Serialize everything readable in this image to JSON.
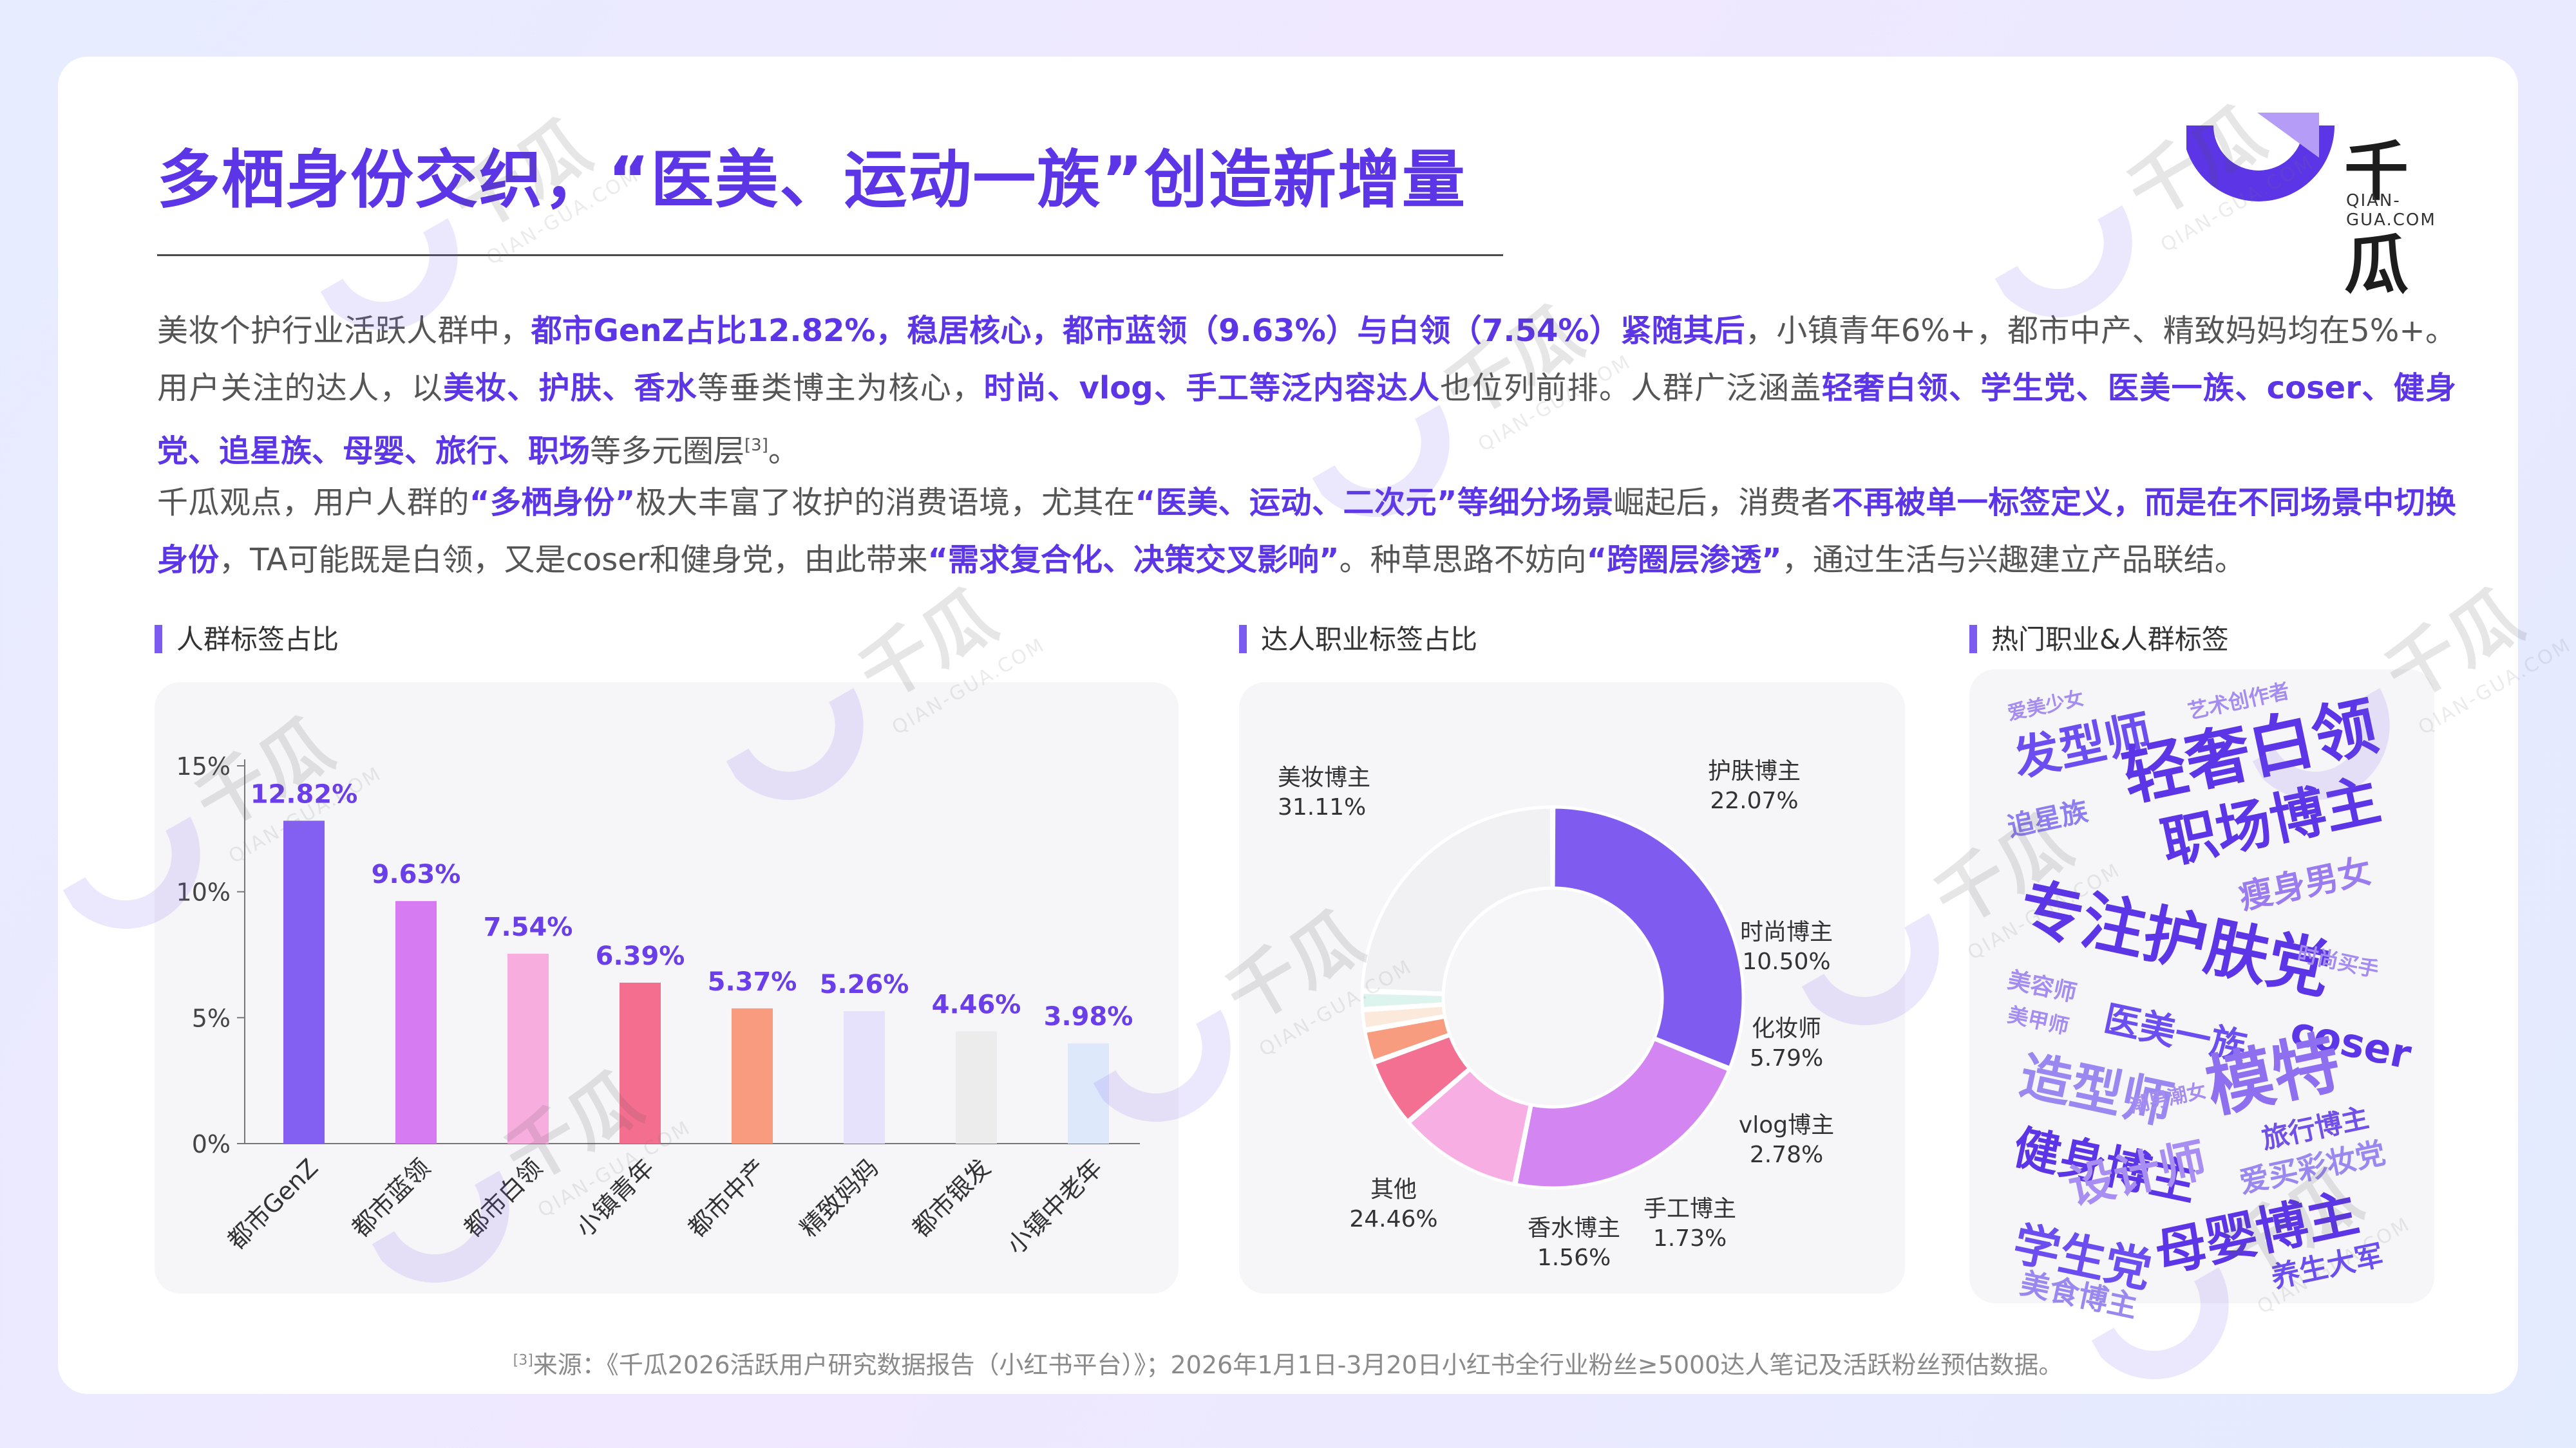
{
  "title": "多栖身份交织，“医美、运动一族”创造新增量",
  "logo": {
    "name": "千瓜",
    "sub": "QIAN-GUA.COM"
  },
  "paragraph1": [
    {
      "t": "美妆个护行业活跃人群中，",
      "h": false
    },
    {
      "t": "都市GenZ占比12.82%，稳居核心，都市蓝领（9.63%）与白领（7.54%）紧随其后",
      "h": true
    },
    {
      "t": "，小镇青年6%+，都市中产、精致妈妈均在5%+。用户关注的达人，以",
      "h": false
    },
    {
      "t": "美妆、护肤、香水",
      "h": true
    },
    {
      "t": "等垂类博主为核心，",
      "h": false
    },
    {
      "t": "时尚、vlog、手工等泛内容达人",
      "h": true
    },
    {
      "t": "也位列前排。人群广泛涵盖",
      "h": false
    },
    {
      "t": "轻奢白领、学生党、医美一族、coser、健身党、追星族、母婴、旅行、职场",
      "h": true
    },
    {
      "t": "等多元圈层",
      "h": false
    },
    {
      "t": "[3]",
      "h": false,
      "sup": true
    },
    {
      "t": "。",
      "h": false
    }
  ],
  "paragraph2": [
    {
      "t": "千瓜观点，用户人群的",
      "h": false
    },
    {
      "t": "“多栖身份”",
      "h": true
    },
    {
      "t": "极大丰富了妆护的消费语境，尤其在",
      "h": false
    },
    {
      "t": "“医美、运动、二次元”等细分场景",
      "h": true
    },
    {
      "t": "崛起后，消费者",
      "h": false
    },
    {
      "t": "不再被单一标签定义，而是在不同场景中切换身份",
      "h": true
    },
    {
      "t": "，TA可能既是白领，又是coser和健身党，由此带来",
      "h": false
    },
    {
      "t": "“需求复合化、决策交叉影响”",
      "h": true
    },
    {
      "t": "。种草思路不妨向",
      "h": false
    },
    {
      "t": "“跨圈层渗透”",
      "h": true
    },
    {
      "t": "，通过生活与兴趣建立产品联结。",
      "h": false
    }
  ],
  "section_titles": {
    "bar": "人群标签占比",
    "donut": "达人职业标签占比",
    "cloud": "热门职业&人群标签"
  },
  "chart_data": [
    {
      "type": "bar",
      "title": "人群标签占比",
      "categories": [
        "都市GenZ",
        "都市蓝领",
        "都市白领",
        "小镇青年",
        "都市中产",
        "精致妈妈",
        "都市银发",
        "小镇中老年"
      ],
      "values": [
        12.82,
        9.63,
        7.54,
        6.39,
        5.37,
        5.26,
        4.46,
        3.98
      ],
      "value_labels": [
        "12.82%",
        "9.63%",
        "7.54%",
        "6.39%",
        "5.37%",
        "5.26%",
        "4.46%",
        "3.98%"
      ],
      "colors": [
        "#8460f2",
        "#d67bf2",
        "#f8addf",
        "#f46e90",
        "#f89b7e",
        "#e7e2fb",
        "#ececec",
        "#dde8fb"
      ],
      "yticks": [
        "0%",
        "5%",
        "10%",
        "15%"
      ],
      "ylim": [
        0,
        15
      ],
      "grid": false
    },
    {
      "type": "pie",
      "title": "达人职业标签占比",
      "labels": [
        "美妆博主",
        "护肤博主",
        "时尚博主",
        "化妆师",
        "vlog博主",
        "手工博主",
        "香水博主",
        "其他"
      ],
      "values": [
        31.11,
        22.07,
        10.5,
        5.79,
        2.78,
        1.73,
        1.56,
        24.46
      ],
      "value_labels": [
        "31.11%",
        "22.07%",
        "10.50%",
        "5.79%",
        "2.78%",
        "1.73%",
        "1.56%",
        "24.46%"
      ],
      "colors": [
        "#7f5bf0",
        "#d385f2",
        "#f7aee2",
        "#f47092",
        "#f89c7f",
        "#fbe9dc",
        "#dcf3ee",
        "#f1f1f3"
      ],
      "donut": true
    }
  ],
  "wordcloud": [
    {
      "text": "爱美少女",
      "color": "#a48cf0",
      "size": 30,
      "rot": -12
    },
    {
      "text": "艺术创作者",
      "color": "#a48cf0",
      "size": 32,
      "rot": -12
    },
    {
      "text": "发型师",
      "color": "#6b4df0",
      "size": 72,
      "rot": -12
    },
    {
      "text": "轻奢白领",
      "color": "#5b35e6",
      "size": 100,
      "rot": -12
    },
    {
      "text": "追星族",
      "color": "#8d7df0",
      "size": 42,
      "rot": -12
    },
    {
      "text": "职场博主",
      "color": "#5b35e6",
      "size": 86,
      "rot": -12
    },
    {
      "text": "瘦身男女",
      "color": "#9a7cf0",
      "size": 52,
      "rot": -12
    },
    {
      "text": "专注护肤党",
      "color": "#5b35e6",
      "size": 98,
      "rot": 12
    },
    {
      "text": "时尚买手",
      "color": "#a48cf0",
      "size": 32,
      "rot": 12
    },
    {
      "text": "美容师",
      "color": "#a48cf0",
      "size": 36,
      "rot": 12
    },
    {
      "text": "美甲师",
      "color": "#a48cf0",
      "size": 32,
      "rot": 12
    },
    {
      "text": "医美一族",
      "color": "#6b4df0",
      "size": 56,
      "rot": 12
    },
    {
      "text": "coser",
      "color": "#5b35e6",
      "size": 62,
      "rot": 12
    },
    {
      "text": "造型师",
      "color": "#9a88f0",
      "size": 80,
      "rot": 12
    },
    {
      "text": "潮男潮女",
      "color": "#a48cf0",
      "size": 30,
      "rot": -12
    },
    {
      "text": "模特",
      "color": "#8d6ff0",
      "size": 104,
      "rot": -12
    },
    {
      "text": "健身博主",
      "color": "#5b35e6",
      "size": 72,
      "rot": 12
    },
    {
      "text": "旅行博主",
      "color": "#7050e6",
      "size": 42,
      "rot": -12
    },
    {
      "text": "设计师",
      "color": "#a88ef2",
      "size": 72,
      "rot": -12
    },
    {
      "text": "爱买彩妆党",
      "color": "#9a88f0",
      "size": 46,
      "rot": -12
    },
    {
      "text": "学生党",
      "color": "#6b4df0",
      "size": 72,
      "rot": 12
    },
    {
      "text": "母婴博主",
      "color": "#5b35e6",
      "size": 80,
      "rot": -12
    },
    {
      "text": "美食博主",
      "color": "#9a88f0",
      "size": 46,
      "rot": 12
    },
    {
      "text": "养生大军",
      "color": "#6b4df0",
      "size": 44,
      "rot": -12
    }
  ],
  "footnote": {
    "sup": "[3]",
    "text": "来源：《千瓜2026活跃用户研究数据报告（小红书平台）》；2026年1月1日-3月20日小红书全行业粉丝≥5000达人笔记及活跃粉丝预估数据。"
  },
  "watermark": {
    "name": "千瓜",
    "sub": "QIAN-GUA.COM"
  }
}
